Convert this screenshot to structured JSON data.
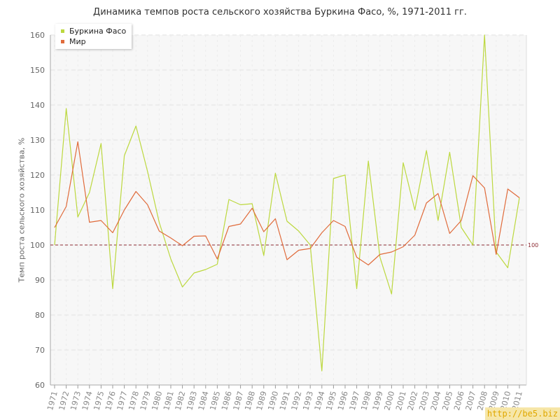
{
  "chart_data": {
    "type": "line",
    "title": "Динамика темпов роста сельского хозяйства Буркина Фасо, %, 1971-2011 гг.",
    "xlabel": "",
    "ylabel": "Темп роста сельского хозяйства, %",
    "ylim": [
      60,
      160
    ],
    "yticks": [
      60,
      70,
      80,
      90,
      100,
      110,
      120,
      130,
      140,
      150,
      160
    ],
    "x": [
      1971,
      1972,
      1973,
      1974,
      1975,
      1976,
      1977,
      1978,
      1979,
      1980,
      1981,
      1982,
      1983,
      1984,
      1985,
      1986,
      1987,
      1988,
      1989,
      1990,
      1991,
      1992,
      1993,
      1994,
      1995,
      1996,
      1997,
      1998,
      1999,
      2000,
      2001,
      2002,
      2003,
      2004,
      2005,
      2006,
      2007,
      2008,
      2009,
      2010,
      2011
    ],
    "series": [
      {
        "name": "Буркина Фасо",
        "color": "#bcd83e",
        "values": [
          100.0,
          139.0,
          108.0,
          115.0,
          129.0,
          87.5,
          125.5,
          134.0,
          121.0,
          106.5,
          96.0,
          88.0,
          92.0,
          93.0,
          94.5,
          113.0,
          111.5,
          111.8,
          97.0,
          120.5,
          106.8,
          104.0,
          100.0,
          64.0,
          119.0,
          120.0,
          87.5,
          124.0,
          96.5,
          86.0,
          123.5,
          110.0,
          127.0,
          107.0,
          126.5,
          105.0,
          100.0,
          160.0,
          98.0,
          93.5,
          113.5
        ]
      },
      {
        "name": "Мир",
        "color": "#e06b3b",
        "values": [
          105.0,
          111.0,
          129.5,
          106.5,
          107.0,
          103.5,
          110.0,
          115.3,
          111.5,
          104.0,
          102.0,
          99.8,
          102.5,
          102.6,
          96.0,
          105.3,
          106.0,
          110.5,
          103.8,
          107.5,
          95.8,
          98.5,
          99.0,
          103.5,
          107.0,
          105.3,
          96.5,
          94.3,
          97.3,
          98.0,
          99.5,
          102.8,
          112.0,
          114.7,
          103.3,
          107.0,
          119.8,
          116.3,
          97.3,
          116.0,
          113.5
        ]
      }
    ],
    "reference_line": {
      "value": 100,
      "label": "100",
      "color": "#8b2a32"
    },
    "grid": true,
    "legend": "top-left"
  },
  "watermark": "http://be5.biz"
}
